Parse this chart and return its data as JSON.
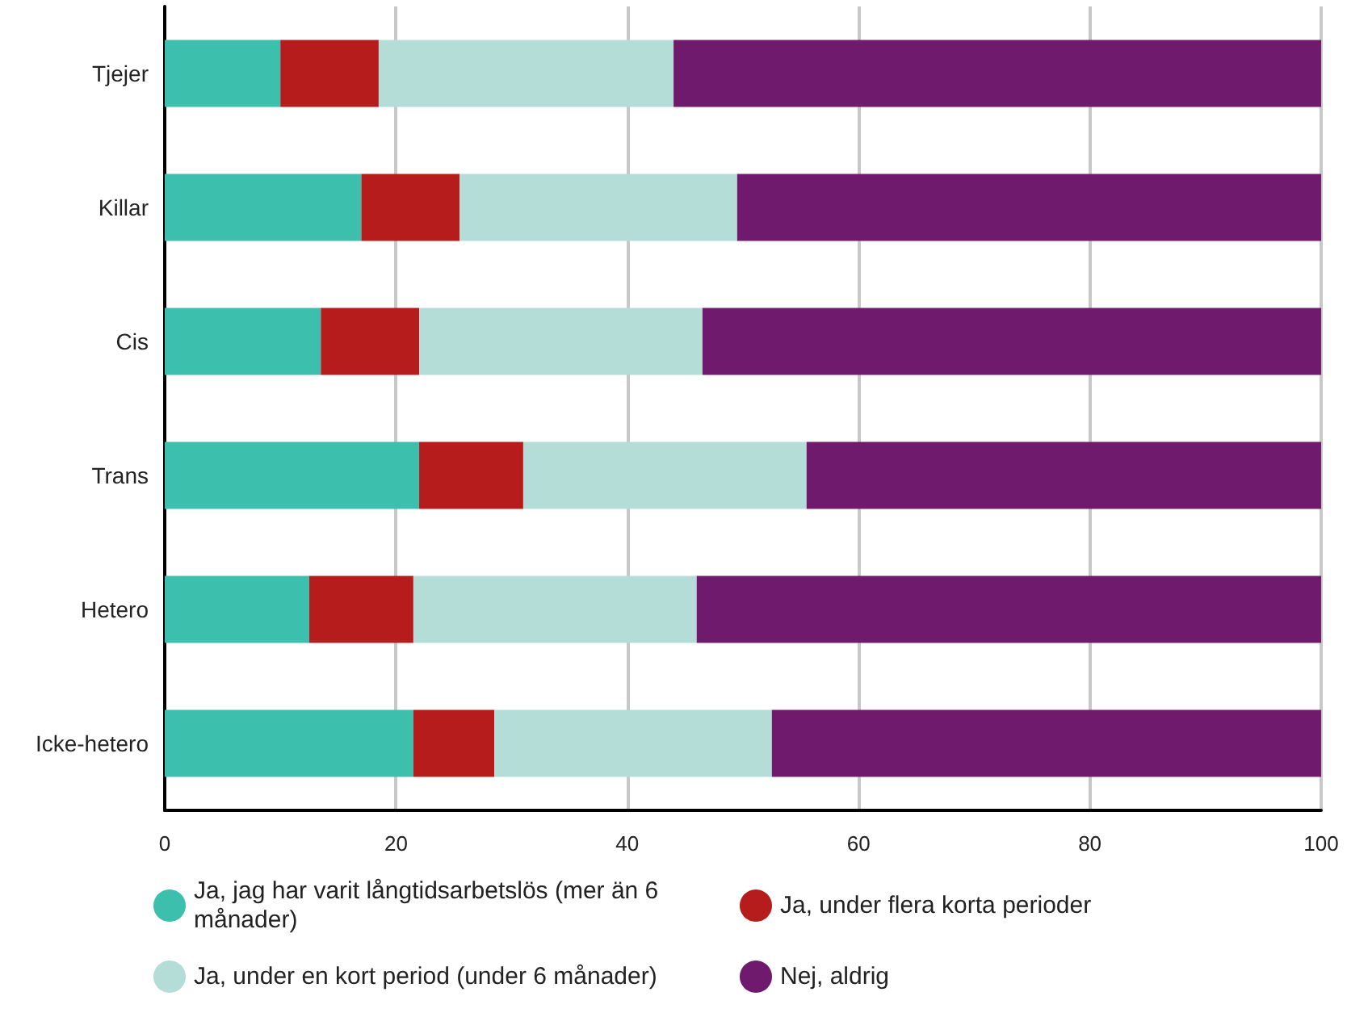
{
  "chart_data": {
    "type": "bar",
    "orientation": "horizontal",
    "stacked": true,
    "categories": [
      "Tjejer",
      "Killar",
      "Cis",
      "Trans",
      "Hetero",
      "Icke-hetero"
    ],
    "series": [
      {
        "name": "Ja, jag har varit långtidsarbetslös (mer än 6 månader)",
        "color": "#3dbfae",
        "values": [
          10,
          17,
          13.5,
          22,
          12.5,
          21.5
        ]
      },
      {
        "name": "Ja, under flera korta perioder",
        "color": "#b71c1c",
        "values": [
          8.5,
          8.5,
          8.5,
          9,
          9,
          7
        ]
      },
      {
        "name": "Ja, under en kort period (under 6 månader)",
        "color": "#b5ddd8",
        "values": [
          25.5,
          24,
          24.5,
          24.5,
          24.5,
          24
        ]
      },
      {
        "name": "Nej, aldrig",
        "color": "#701a6d",
        "values": [
          56,
          50.5,
          53.5,
          44.5,
          54,
          47.5
        ]
      }
    ],
    "xlim": [
      0,
      100
    ],
    "xticks": [
      0,
      20,
      40,
      60,
      80,
      100
    ],
    "grid": "x",
    "legend": "bottom"
  }
}
